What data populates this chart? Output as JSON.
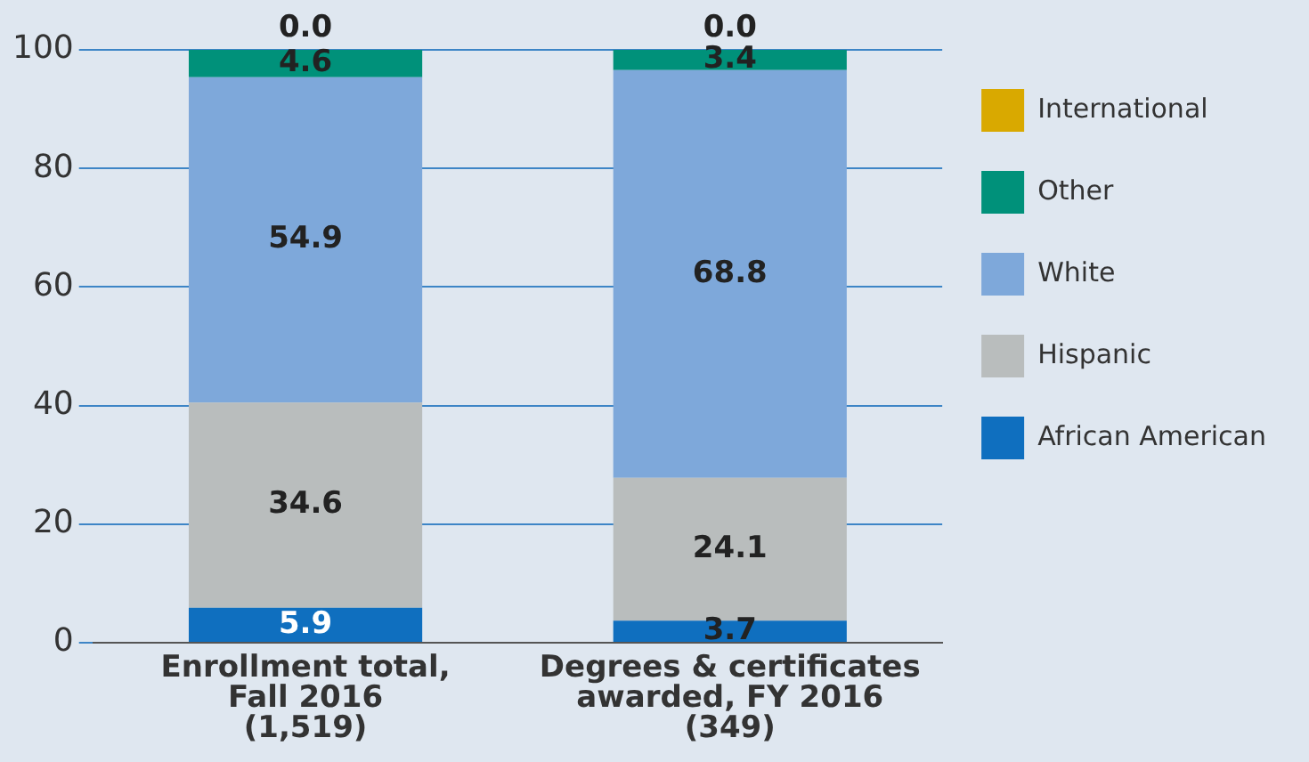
{
  "chart_data": {
    "type": "bar",
    "stacked": true,
    "categories": [
      "Enrollment total,\nFall 2016\n(1,519)",
      "Degrees & certificates\nawarded, FY 2016\n(349)"
    ],
    "series": [
      {
        "name": "African American",
        "color": "#0f6fbf",
        "values": [
          5.9,
          3.7
        ],
        "value_labels": [
          "5.9",
          "3.7"
        ]
      },
      {
        "name": "Hispanic",
        "color": "#b9bdbd",
        "values": [
          34.6,
          24.1
        ],
        "value_labels": [
          "34.6",
          "24.1"
        ]
      },
      {
        "name": "White",
        "color": "#7ea8da",
        "values": [
          54.9,
          68.8
        ],
        "value_labels": [
          "54.9",
          "68.8"
        ]
      },
      {
        "name": "Other",
        "color": "#00917a",
        "values": [
          4.6,
          3.4
        ],
        "value_labels": [
          "4.6",
          "3.4"
        ]
      },
      {
        "name": "International",
        "color": "#d9a900",
        "values": [
          0.0,
          0.0
        ],
        "value_labels": [
          "0.0",
          "0.0"
        ]
      }
    ],
    "ylim": [
      0,
      100
    ],
    "yticks": [
      0,
      20,
      40,
      60,
      80,
      100
    ],
    "grid": "y",
    "legend": "right"
  }
}
